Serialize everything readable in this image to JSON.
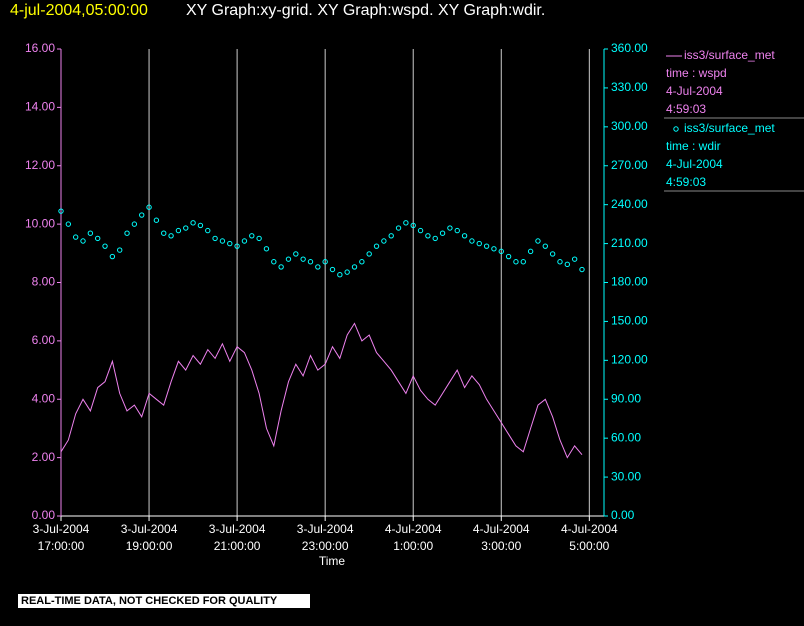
{
  "chart_data": {
    "type": "xy-graph",
    "title_time": "4-jul-2004,05:00:00",
    "title": "XY Graph:xy-grid.  XY Graph:wspd.  XY Graph:wdir.",
    "xlabel": "Time",
    "note": "REAL-TIME DATA, NOT CHECKED FOR QUALITY",
    "grid": true,
    "xlim": [
      "2004-07-03T17:00",
      "2004-07-04T05:20"
    ],
    "xticks": [
      {
        "value": "2004-07-03T17:00",
        "label": [
          "3-Jul-2004",
          "17:00:00"
        ]
      },
      {
        "value": "2004-07-03T19:00",
        "label": [
          "3-Jul-2004",
          "19:00:00"
        ]
      },
      {
        "value": "2004-07-03T21:00",
        "label": [
          "3-Jul-2004",
          "21:00:00"
        ]
      },
      {
        "value": "2004-07-03T23:00",
        "label": [
          "3-Jul-2004",
          "23:00:00"
        ]
      },
      {
        "value": "2004-07-04T01:00",
        "label": [
          "4-Jul-2004",
          "1:00:00"
        ]
      },
      {
        "value": "2004-07-04T03:00",
        "label": [
          "4-Jul-2004",
          "3:00:00"
        ]
      },
      {
        "value": "2004-07-04T05:00",
        "label": [
          "4-Jul-2004",
          "5:00:00"
        ]
      }
    ],
    "ylim": [
      0,
      16
    ],
    "yticks": [
      {
        "value": 0,
        "label": "0.00"
      },
      {
        "value": 2,
        "label": "2.00"
      },
      {
        "value": 4,
        "label": "4.00"
      },
      {
        "value": 6,
        "label": "6.00"
      },
      {
        "value": 8,
        "label": "8.00"
      },
      {
        "value": 10,
        "label": "10.00"
      },
      {
        "value": 12,
        "label": "12.00"
      },
      {
        "value": 14,
        "label": "14.00"
      },
      {
        "value": 16,
        "label": "16.00"
      }
    ],
    "y2lim": [
      0,
      360
    ],
    "y2ticks": [
      {
        "value": 0,
        "label": "0.00"
      },
      {
        "value": 30,
        "label": "30.00"
      },
      {
        "value": 60,
        "label": "60.00"
      },
      {
        "value": 90,
        "label": "90.00"
      },
      {
        "value": 120,
        "label": "120.00"
      },
      {
        "value": 150,
        "label": "150.00"
      },
      {
        "value": 180,
        "label": "180.00"
      },
      {
        "value": 210,
        "label": "210.00"
      },
      {
        "value": 240,
        "label": "240.00"
      },
      {
        "value": 270,
        "label": "270.00"
      },
      {
        "value": 300,
        "label": "300.00"
      },
      {
        "value": 330,
        "label": "330.00"
      },
      {
        "value": 360,
        "label": "360.00"
      }
    ],
    "x": [
      "2004-07-03T17:00",
      "2004-07-03T17:10",
      "2004-07-03T17:20",
      "2004-07-03T17:30",
      "2004-07-03T17:40",
      "2004-07-03T17:50",
      "2004-07-03T18:00",
      "2004-07-03T18:10",
      "2004-07-03T18:20",
      "2004-07-03T18:30",
      "2004-07-03T18:40",
      "2004-07-03T18:50",
      "2004-07-03T19:00",
      "2004-07-03T19:10",
      "2004-07-03T19:20",
      "2004-07-03T19:30",
      "2004-07-03T19:40",
      "2004-07-03T19:50",
      "2004-07-03T20:00",
      "2004-07-03T20:10",
      "2004-07-03T20:20",
      "2004-07-03T20:30",
      "2004-07-03T20:40",
      "2004-07-03T20:50",
      "2004-07-03T21:00",
      "2004-07-03T21:10",
      "2004-07-03T21:20",
      "2004-07-03T21:30",
      "2004-07-03T21:40",
      "2004-07-03T21:50",
      "2004-07-03T22:00",
      "2004-07-03T22:10",
      "2004-07-03T22:20",
      "2004-07-03T22:30",
      "2004-07-03T22:40",
      "2004-07-03T22:50",
      "2004-07-03T23:00",
      "2004-07-03T23:10",
      "2004-07-03T23:20",
      "2004-07-03T23:30",
      "2004-07-03T23:40",
      "2004-07-03T23:50",
      "2004-07-04T00:00",
      "2004-07-04T00:10",
      "2004-07-04T00:20",
      "2004-07-04T00:30",
      "2004-07-04T00:40",
      "2004-07-04T00:50",
      "2004-07-04T01:00",
      "2004-07-04T01:10",
      "2004-07-04T01:20",
      "2004-07-04T01:30",
      "2004-07-04T01:40",
      "2004-07-04T01:50",
      "2004-07-04T02:00",
      "2004-07-04T02:10",
      "2004-07-04T02:20",
      "2004-07-04T02:30",
      "2004-07-04T02:40",
      "2004-07-04T02:50",
      "2004-07-04T03:00",
      "2004-07-04T03:10",
      "2004-07-04T03:20",
      "2004-07-04T03:30",
      "2004-07-04T03:40",
      "2004-07-04T03:50",
      "2004-07-04T04:00",
      "2004-07-04T04:10",
      "2004-07-04T04:20",
      "2004-07-04T04:30",
      "2004-07-04T04:40",
      "2004-07-04T04:50"
    ],
    "series": [
      {
        "name": "iss3/surface_met",
        "legend_detail": [
          "time : wspd",
          "4-Jul-2004",
          "4:59:03"
        ],
        "color": "#ee82ee",
        "marker": "line",
        "values": [
          2.2,
          2.6,
          3.5,
          4.0,
          3.6,
          4.4,
          4.6,
          5.3,
          4.2,
          3.6,
          3.8,
          3.4,
          4.2,
          4.0,
          3.8,
          4.6,
          5.3,
          5.0,
          5.5,
          5.2,
          5.7,
          5.4,
          5.9,
          5.3,
          5.8,
          5.6,
          5.0,
          4.2,
          3.0,
          2.4,
          3.6,
          4.6,
          5.2,
          4.8,
          5.5,
          5.0,
          5.2,
          5.8,
          5.4,
          6.2,
          6.6,
          6.0,
          6.2,
          5.6,
          5.3,
          5.0,
          4.6,
          4.2,
          4.8,
          4.3,
          4.0,
          3.8,
          4.2,
          4.6,
          5.0,
          4.4,
          4.8,
          4.5,
          4.0,
          3.6,
          3.2,
          2.8,
          2.4,
          2.2,
          3.0,
          3.8,
          4.0,
          3.4,
          2.6,
          2.0,
          2.4,
          2.1
        ]
      },
      {
        "name": "iss3/surface_met",
        "legend_detail": [
          "time : wdir",
          "4-Jul-2004",
          "4:59:03"
        ],
        "color": "#00ffff",
        "marker": "circle",
        "axis": "y2",
        "values": [
          235,
          225,
          215,
          212,
          218,
          214,
          208,
          200,
          205,
          218,
          225,
          232,
          238,
          228,
          218,
          216,
          220,
          222,
          226,
          224,
          220,
          214,
          212,
          210,
          208,
          212,
          216,
          214,
          206,
          196,
          192,
          198,
          202,
          198,
          196,
          192,
          196,
          190,
          186,
          188,
          192,
          196,
          202,
          208,
          212,
          216,
          222,
          226,
          224,
          220,
          216,
          214,
          218,
          222,
          220,
          216,
          212,
          210,
          208,
          206,
          204,
          200,
          196,
          196,
          204,
          212,
          208,
          202,
          196,
          194,
          198,
          190
        ]
      }
    ]
  }
}
